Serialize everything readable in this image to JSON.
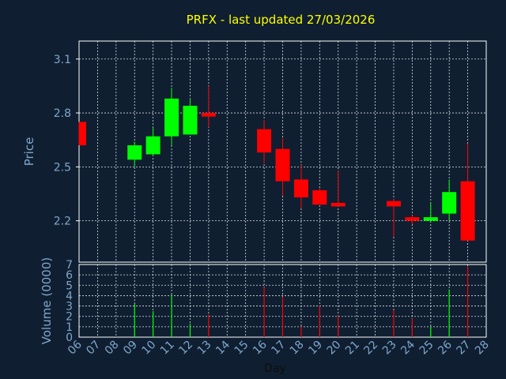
{
  "chart_data": {
    "type": "candlestick",
    "title": "PRFX - last updated 27/03/2026",
    "price_panel": {
      "ylabel": "Price",
      "yticks": [
        "3.1",
        "2.8",
        "2.5",
        "2.2"
      ],
      "ylim": [
        1.97,
        3.2
      ],
      "grid": true
    },
    "volume_panel": {
      "ylabel": "Volume (0000)",
      "yticks": [
        "0",
        "1",
        "2",
        "3",
        "4",
        "5",
        "6",
        "7"
      ],
      "ylim": [
        0,
        7
      ],
      "grid": true
    },
    "xlabel": "Day",
    "x_ticks": [
      "06",
      "07",
      "08",
      "09",
      "10",
      "11",
      "12",
      "13",
      "14",
      "15",
      "16",
      "17",
      "18",
      "19",
      "20",
      "21",
      "22",
      "23",
      "24",
      "25",
      "26",
      "27",
      "28"
    ],
    "colors": {
      "up": "#00ff00",
      "down": "#ff0000",
      "grid": "#ffffff",
      "axis_text": "#7fa6cc",
      "title": "#ffff00",
      "background": "#0f1f31"
    },
    "candles": [
      {
        "day": "06",
        "open": 2.75,
        "high": 2.75,
        "low": 2.62,
        "close": 2.62,
        "volume": 0.0
      },
      {
        "day": "09",
        "open": 2.54,
        "high": 2.64,
        "low": 2.5,
        "close": 2.62,
        "volume": 3.2
      },
      {
        "day": "10",
        "open": 2.57,
        "high": 2.72,
        "low": 2.56,
        "close": 2.67,
        "volume": 2.5
      },
      {
        "day": "11",
        "open": 2.67,
        "high": 2.94,
        "low": 2.62,
        "close": 2.88,
        "volume": 4.1
      },
      {
        "day": "12",
        "open": 2.68,
        "high": 2.88,
        "low": 2.68,
        "close": 2.84,
        "volume": 1.3
      },
      {
        "day": "13",
        "open": 2.8,
        "high": 2.95,
        "low": 2.72,
        "close": 2.78,
        "volume": 2.2
      },
      {
        "day": "16",
        "open": 2.71,
        "high": 2.76,
        "low": 2.52,
        "close": 2.58,
        "volume": 4.8
      },
      {
        "day": "17",
        "open": 2.6,
        "high": 2.66,
        "low": 2.34,
        "close": 2.42,
        "volume": 3.9
      },
      {
        "day": "18",
        "open": 2.43,
        "high": 2.51,
        "low": 2.27,
        "close": 2.33,
        "volume": 1.0
      },
      {
        "day": "19",
        "open": 2.37,
        "high": 2.38,
        "low": 2.29,
        "close": 2.29,
        "volume": 3.0
      },
      {
        "day": "20",
        "open": 2.3,
        "high": 2.48,
        "low": 2.28,
        "close": 2.28,
        "volume": 2.1
      },
      {
        "day": "23",
        "open": 2.31,
        "high": 2.32,
        "low": 2.11,
        "close": 2.28,
        "volume": 2.6
      },
      {
        "day": "24",
        "open": 2.22,
        "high": 2.23,
        "low": 2.18,
        "close": 2.2,
        "volume": 1.8
      },
      {
        "day": "25",
        "open": 2.2,
        "high": 2.3,
        "low": 2.2,
        "close": 2.22,
        "volume": 1.0
      },
      {
        "day": "26",
        "open": 2.24,
        "high": 2.43,
        "low": 2.2,
        "close": 2.36,
        "volume": 4.6
      },
      {
        "day": "27",
        "open": 2.42,
        "high": 2.63,
        "low": 2.09,
        "close": 2.09,
        "volume": 6.8
      }
    ]
  }
}
